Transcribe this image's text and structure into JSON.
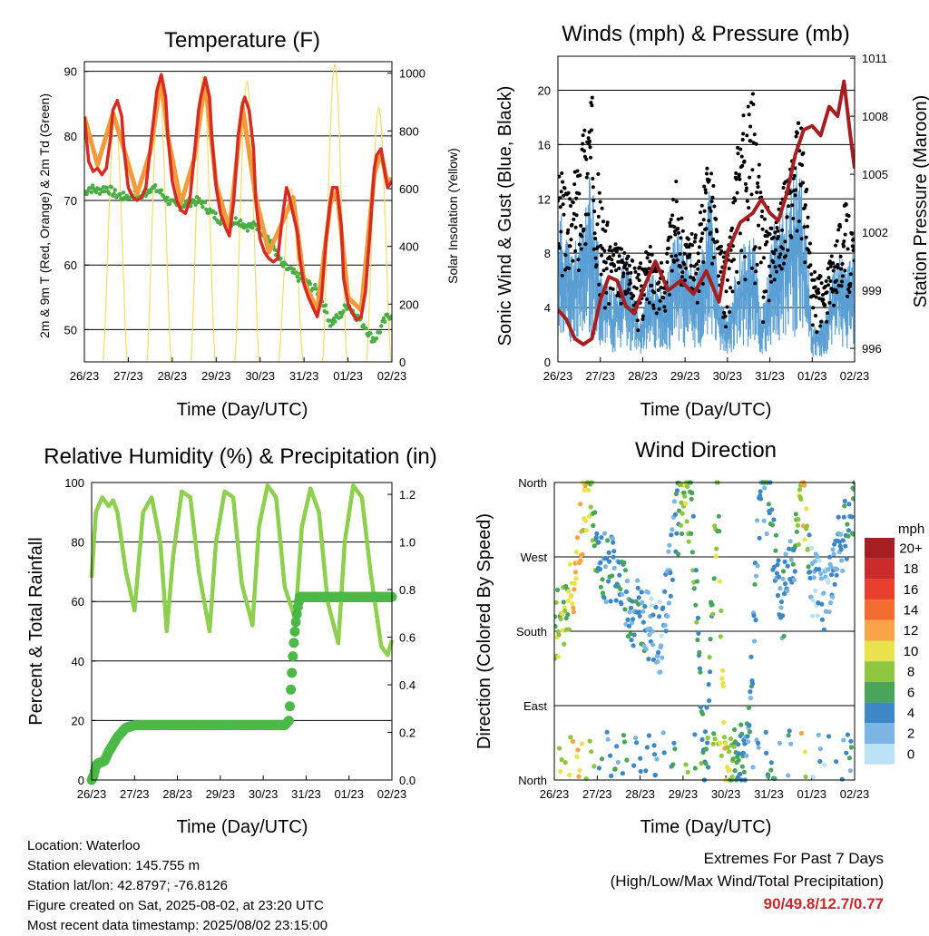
{
  "panels": {
    "temperature": {
      "title": "Temperature (F)",
      "ylabel": "2m & 9m T (Red, Orange) & 2m Td (Green)",
      "y2label": "Solar Insolation (Yellow)",
      "xlabel": "Time (Day/UTC)"
    },
    "winds": {
      "title": "Winds (mph) & Pressure (mb)",
      "ylabel": "Sonic Wind & Gust (Blue, Black)",
      "y2label": "Station Pressure (Maroon)",
      "xlabel": "Time (Day/UTC)"
    },
    "humidity": {
      "title": "Relative Humidity (%) & Precipitation (in)",
      "ylabel": "Percent & Total Rainfall",
      "xlabel": "Time (Day/UTC)"
    },
    "direction": {
      "title": "Wind Direction",
      "ylabel": "Direction (Colored By Speed)",
      "xlabel": "Time (Day/UTC)",
      "legend_title": "mph"
    }
  },
  "info": {
    "location": "Location: Waterloo",
    "elevation": "Station elevation: 145.755 m",
    "latlon": "Station lat/lon: 42.8797; -76.8126",
    "created": "Figure created on Sat, 2025-08-02, at 23:20 UTC",
    "recent": "Most recent data timestamp: 2025/08/02 23:15:00"
  },
  "extremes": {
    "line1": "Extremes For Past 7 Days",
    "line2": "(High/Low/Max Wind/Total Precipitation)",
    "values": "90/49.8/12.7/0.77"
  },
  "colors": {
    "temp_2m": "#d62b22",
    "temp_9m": "#f39a3a",
    "dewpoint": "#4aae45",
    "solar": "#f3dc6a",
    "wind": "#5a9fd4",
    "gust": "#000000",
    "pressure": "#a51f22",
    "rh": "#8fcf4f",
    "precip": "#4cb848"
  },
  "chart_data": [
    {
      "id": "temperature",
      "type": "line",
      "title": "Temperature (F)",
      "xlabel": "Time (Day/UTC)",
      "ylabel": "2m & 9m T (Red, Orange) & 2m Td (Green)",
      "y2label": "Solar Insolation (Yellow)",
      "x_ticks": [
        "26/23",
        "27/23",
        "28/23",
        "29/23",
        "30/23",
        "31/23",
        "01/23",
        "02/23"
      ],
      "x_range_days": [
        0,
        7
      ],
      "ylim": [
        45,
        91.5
      ],
      "y_ticks": [
        50,
        60,
        70,
        80,
        90
      ],
      "y2lim": [
        0,
        1040
      ],
      "y2_ticks": [
        0,
        200,
        400,
        600,
        800,
        1000
      ],
      "grid": true,
      "series": [
        {
          "name": "2m T",
          "axis": "left",
          "color": "#d62b22",
          "x": [
            0,
            0.1,
            0.2,
            0.3,
            0.4,
            0.5,
            0.6,
            0.65,
            0.75,
            0.85,
            0.9,
            1.0,
            1.1,
            1.2,
            1.3,
            1.4,
            1.5,
            1.6,
            1.65,
            1.75,
            1.85,
            1.9,
            2.0,
            2.1,
            2.2,
            2.3,
            2.4,
            2.5,
            2.6,
            2.65,
            2.75,
            2.85,
            2.9,
            3.0,
            3.1,
            3.2,
            3.3,
            3.4,
            3.5,
            3.6,
            3.65,
            3.75,
            3.85,
            3.9,
            4.0,
            4.1,
            4.2,
            4.3,
            4.4,
            4.5,
            4.6,
            4.65,
            4.75,
            4.85,
            4.9,
            5.0,
            5.1,
            5.2,
            5.3,
            5.4,
            5.5,
            5.6,
            5.65,
            5.75,
            5.85,
            5.9,
            6.0,
            6.1,
            6.2,
            6.3,
            6.4,
            6.5,
            6.6,
            6.65,
            6.75,
            6.85,
            6.9,
            7.0
          ],
          "y": [
            83,
            76,
            74.5,
            75,
            74,
            75,
            80,
            84,
            85.5,
            83,
            78,
            72,
            70.5,
            70,
            70.5,
            72,
            78,
            84,
            87,
            89.5,
            86,
            80,
            73,
            70,
            68.5,
            68,
            70,
            77,
            84,
            86,
            89,
            86,
            80,
            72,
            68,
            66,
            64.5,
            70,
            80,
            85,
            86,
            84,
            78,
            70,
            64,
            62,
            61,
            60.5,
            61,
            67,
            72,
            71,
            68,
            65,
            61,
            57,
            55,
            53.5,
            52,
            55,
            64,
            70,
            72,
            72,
            66,
            58,
            54,
            52.5,
            51.5,
            52,
            56,
            65,
            75,
            77,
            78,
            74,
            72,
            73
          ]
        },
        {
          "name": "9m T",
          "axis": "left",
          "color": "#f39a3a",
          "x": [
            0,
            0.3,
            0.65,
            0.9,
            1.2,
            1.5,
            1.75,
            1.9,
            2.2,
            2.5,
            2.75,
            3.0,
            3.3,
            3.6,
            3.9,
            4.2,
            4.5,
            4.75,
            5.0,
            5.3,
            5.6,
            5.75,
            6.0,
            6.3,
            6.6,
            6.75,
            6.9,
            7.0
          ],
          "y": [
            83,
            75.5,
            83.5,
            78,
            71,
            77.5,
            89,
            80,
            69.5,
            76.5,
            88.5,
            72.5,
            65.5,
            84.5,
            70.5,
            62,
            66.5,
            70.5,
            57.5,
            53,
            69.5,
            71.5,
            55,
            53,
            74,
            77.5,
            72.5,
            73.5
          ]
        },
        {
          "name": "2m Td",
          "axis": "left",
          "color": "#4aae45",
          "x": [
            0,
            0.1,
            0.3,
            0.5,
            0.7,
            0.9,
            1.1,
            1.3,
            1.5,
            1.7,
            1.9,
            2.1,
            2.3,
            2.5,
            2.7,
            2.9,
            3.1,
            3.3,
            3.5,
            3.7,
            3.9,
            4.1,
            4.3,
            4.5,
            4.7,
            4.9,
            5.1,
            5.3,
            5.5,
            5.6,
            5.8,
            6.0,
            6.2,
            6.4,
            6.5,
            6.6,
            6.7,
            6.8,
            6.9,
            7.0
          ],
          "y": [
            71,
            72,
            71.5,
            72,
            71,
            70.5,
            71,
            70.5,
            72,
            71.5,
            70,
            69,
            69.5,
            70,
            69.5,
            68,
            67,
            66.5,
            67,
            66,
            66,
            65,
            63,
            60,
            59,
            58,
            57,
            56,
            53,
            51,
            52,
            54,
            52,
            50.5,
            49,
            48.5,
            49.5,
            51,
            52,
            52.5
          ]
        },
        {
          "name": "Solar Insolation",
          "axis": "right",
          "color": "#f3dc6a",
          "peak_days": [
            0.7,
            1.7,
            2.7,
            3.7,
            4.7,
            5.7,
            6.7
          ],
          "peak_values": [
            860,
            950,
            990,
            970,
            600,
            1030,
            880
          ]
        }
      ]
    },
    {
      "id": "winds",
      "type": "scatter",
      "title": "Winds (mph) & Pressure (mb)",
      "xlabel": "Time (Day/UTC)",
      "ylabel": "Sonic Wind & Gust (Blue, Black)",
      "y2label": "Station Pressure (Maroon)",
      "x_ticks": [
        "26/23",
        "27/23",
        "28/23",
        "29/23",
        "30/23",
        "31/23",
        "01/23",
        "02/23"
      ],
      "ylim": [
        0,
        22.5
      ],
      "y_ticks": [
        0,
        4,
        8,
        12,
        16,
        20
      ],
      "y2lim": [
        995.3,
        1011.1
      ],
      "y2_ticks": [
        996,
        999,
        1002,
        1005,
        1008,
        1011
      ],
      "grid": true,
      "series": [
        {
          "name": "Sonic Wind",
          "axis": "left",
          "color": "#5a9fd4",
          "x": [
            0,
            0.3,
            0.6,
            0.8,
            1.0,
            1.3,
            1.6,
            1.9,
            2.2,
            2.5,
            2.8,
            3.0,
            3.3,
            3.6,
            3.8,
            4.0,
            4.3,
            4.6,
            4.8,
            5.1,
            5.4,
            5.7,
            5.8,
            6.0,
            6.3,
            6.6,
            6.8,
            7.0
          ],
          "y": [
            7,
            5,
            6,
            9,
            4,
            3,
            5,
            2,
            4,
            3,
            6,
            5,
            4,
            8,
            3,
            2,
            5,
            6,
            2,
            6,
            7,
            9,
            7,
            1.5,
            2,
            5,
            4,
            6
          ]
        },
        {
          "name": "Gust",
          "axis": "left",
          "color": "#000000",
          "x": [
            0,
            0.3,
            0.6,
            0.8,
            1.0,
            1.3,
            1.6,
            1.9,
            2.2,
            2.5,
            2.8,
            3.0,
            3.3,
            3.6,
            3.8,
            4.0,
            4.3,
            4.6,
            4.8,
            5.1,
            5.4,
            5.7,
            5.8,
            6.0,
            6.3,
            6.6,
            6.8,
            7.0
          ],
          "y": [
            15,
            12,
            18,
            20,
            12,
            9,
            8,
            7,
            9,
            7,
            14,
            9,
            10,
            16,
            9,
            8,
            18,
            20,
            13,
            10,
            14,
            18,
            16,
            7,
            6,
            10,
            12,
            9
          ]
        },
        {
          "name": "Station Pressure",
          "axis": "right",
          "color": "#a51f22",
          "x": [
            0,
            0.2,
            0.4,
            0.6,
            0.8,
            1.0,
            1.2,
            1.4,
            1.6,
            1.8,
            2.0,
            2.3,
            2.6,
            2.9,
            3.2,
            3.5,
            3.8,
            4.0,
            4.3,
            4.6,
            4.8,
            5.0,
            5.2,
            5.4,
            5.6,
            5.8,
            6.0,
            6.2,
            6.4,
            6.6,
            6.75,
            6.9,
            7.0
          ],
          "y": [
            998,
            997.5,
            996.5,
            996.2,
            996.5,
            998.5,
            999.7,
            999.5,
            998.2,
            997.8,
            999,
            1000.5,
            999,
            999.5,
            998.8,
            1000,
            998.4,
            1001,
            1002.5,
            1003,
            1003.7,
            1003,
            1002.6,
            1004,
            1006,
            1007.3,
            1007.5,
            1007,
            1008.5,
            1008,
            1009.8,
            1007,
            1005.3
          ]
        }
      ]
    },
    {
      "id": "humidity",
      "type": "line",
      "title": "Relative Humidity (%) & Precipitation (in)",
      "xlabel": "Time (Day/UTC)",
      "ylabel": "Percent & Total Rainfall",
      "x_ticks": [
        "26/23",
        "27/23",
        "28/23",
        "29/23",
        "30/23",
        "31/23",
        "01/23",
        "02/23"
      ],
      "ylim": [
        0,
        100
      ],
      "y_ticks": [
        0,
        20,
        40,
        60,
        80,
        100
      ],
      "y2lim": [
        0,
        1.25
      ],
      "y2_ticks": [
        0.0,
        0.2,
        0.4,
        0.6,
        0.8,
        1.0,
        1.2
      ],
      "grid": true,
      "series": [
        {
          "name": "Relative Humidity",
          "axis": "left",
          "color": "#8fcf4f",
          "x": [
            0,
            0.1,
            0.25,
            0.4,
            0.5,
            0.6,
            0.7,
            0.8,
            1.0,
            1.2,
            1.4,
            1.6,
            1.75,
            1.9,
            2.1,
            2.3,
            2.5,
            2.75,
            2.9,
            3.1,
            3.3,
            3.5,
            3.75,
            3.9,
            4.1,
            4.3,
            4.5,
            4.75,
            4.9,
            5.1,
            5.3,
            5.5,
            5.75,
            5.9,
            6.1,
            6.3,
            6.5,
            6.75,
            6.9,
            7.0
          ],
          "y": [
            68,
            90,
            95,
            92,
            94,
            90,
            80,
            70,
            57,
            90,
            95,
            80,
            50,
            75,
            97,
            95,
            70,
            50,
            80,
            97,
            95,
            66,
            52,
            85,
            99,
            95,
            65,
            54,
            85,
            98,
            90,
            60,
            46,
            80,
            99,
            95,
            70,
            45,
            42,
            47
          ]
        },
        {
          "name": "Total Rainfall",
          "axis": "right",
          "color": "#4cb848",
          "x": [
            0,
            0.05,
            0.1,
            0.15,
            0.3,
            0.4,
            0.5,
            0.6,
            0.7,
            0.8,
            1.0,
            2.0,
            3.0,
            4.0,
            4.5,
            4.6,
            4.65,
            4.7,
            4.75,
            4.8,
            4.85,
            5.0,
            6.0,
            7.0
          ],
          "y": [
            0,
            0.02,
            0.06,
            0.07,
            0.08,
            0.12,
            0.15,
            0.18,
            0.2,
            0.22,
            0.23,
            0.23,
            0.23,
            0.23,
            0.23,
            0.25,
            0.4,
            0.55,
            0.65,
            0.72,
            0.77,
            0.77,
            0.77,
            0.77
          ]
        }
      ]
    },
    {
      "id": "direction",
      "type": "scatter",
      "title": "Wind Direction",
      "xlabel": "Time (Day/UTC)",
      "ylabel": "Direction (Colored By Speed)",
      "x_ticks": [
        "26/23",
        "27/23",
        "28/23",
        "29/23",
        "30/23",
        "31/23",
        "01/23",
        "02/23"
      ],
      "y_ticks": [
        "North",
        "East",
        "South",
        "West",
        "North"
      ],
      "y_tick_values": [
        0,
        90,
        180,
        270,
        360
      ],
      "grid": true,
      "legend": {
        "title": "mph",
        "labels": [
          "20+",
          "18",
          "16",
          "14",
          "12",
          "10",
          "8",
          "6",
          "4",
          "2",
          "0"
        ],
        "colors": [
          "#a41e22",
          "#cc2b2b",
          "#e8402f",
          "#f46b30",
          "#f9a446",
          "#e8e24f",
          "#8ec63f",
          "#4aa55a",
          "#3e87c7",
          "#7ab5e3",
          "#bce2f6"
        ],
        "placement": "right"
      },
      "series": [
        {
          "name": "Direction",
          "x": [
            0,
            0.1,
            0.2,
            0.3,
            0.4,
            0.5,
            0.6,
            0.7,
            0.8,
            1.0,
            1.2,
            1.4,
            1.6,
            1.8,
            2.0,
            2.2,
            2.5,
            2.8,
            3.0,
            3.2,
            3.5,
            3.8,
            4.0,
            4.2,
            4.5,
            4.8,
            5.0,
            5.3,
            5.6,
            5.8,
            6.0,
            6.3,
            6.6,
            6.8,
            7.0
          ],
          "y": [
            180,
            190,
            200,
            210,
            230,
            260,
            300,
            330,
            350,
            280,
            260,
            250,
            240,
            200,
            210,
            180,
            170,
            300,
            340,
            330,
            20,
            340,
            10,
            20,
            30,
            350,
            340,
            200,
            290,
            350,
            240,
            220,
            280,
            300,
            330
          ],
          "speed": [
            6,
            8,
            8,
            7,
            10,
            12,
            12,
            10,
            9,
            5,
            4,
            4,
            5,
            4,
            4,
            3,
            2,
            4,
            8,
            6,
            5,
            8,
            10,
            6,
            4,
            3,
            5,
            3,
            4,
            12,
            2,
            2,
            3,
            4,
            5
          ]
        }
      ]
    }
  ]
}
